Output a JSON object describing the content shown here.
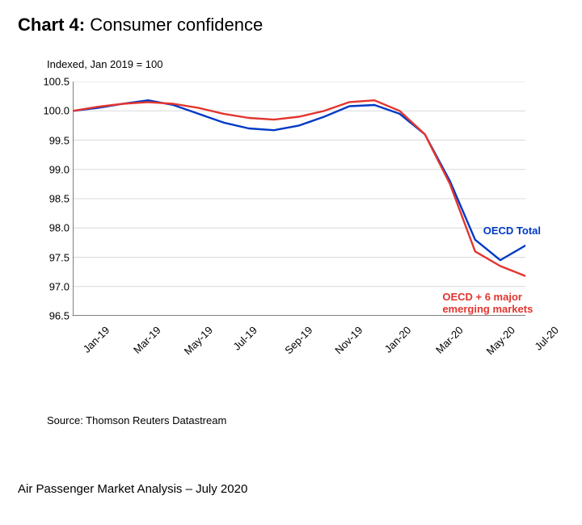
{
  "title_prefix": "Chart 4:",
  "title_rest": " Consumer confidence",
  "subtitle": "Indexed, Jan 2019 = 100",
  "source_line": "Source: Thomson Reuters Datastream",
  "footer": "Air Passenger Market Analysis – July 2020",
  "chart": {
    "type": "line",
    "background_color": "#ffffff",
    "grid_color": "#d9d9d9",
    "axis_color": "#000000",
    "label_fontsize": 13,
    "y": {
      "min": 96.5,
      "max": 100.5,
      "step": 0.5
    },
    "x_labels": [
      "Jan-19",
      "Mar-19",
      "May-19",
      "Jul-19",
      "Sep-19",
      "Nov-19",
      "Jan-20",
      "Mar-20",
      "May-20",
      "Jul-20"
    ],
    "x_count": 19,
    "series": [
      {
        "name": "OECD Total",
        "color": "#0039c6",
        "width": 2.4,
        "values": [
          100.0,
          100.05,
          100.12,
          100.18,
          100.1,
          99.95,
          99.8,
          99.7,
          99.67,
          99.75,
          99.9,
          100.08,
          100.1,
          99.95,
          99.6,
          98.8,
          97.8,
          97.45,
          97.7
        ],
        "annotation": {
          "text": "OECD Total",
          "color": "#0039c6"
        }
      },
      {
        "name": "OECD + 6 major emerging markets",
        "color": "#e3352f",
        "width": 2.4,
        "values": [
          100.0,
          100.07,
          100.12,
          100.15,
          100.12,
          100.05,
          99.95,
          99.88,
          99.85,
          99.9,
          100.0,
          100.15,
          100.18,
          100.0,
          99.6,
          98.75,
          97.6,
          97.35,
          97.18
        ],
        "annotation": {
          "text1": "OECD + 6 major",
          "text2": "emerging markets",
          "color": "#e3352f"
        }
      }
    ]
  }
}
